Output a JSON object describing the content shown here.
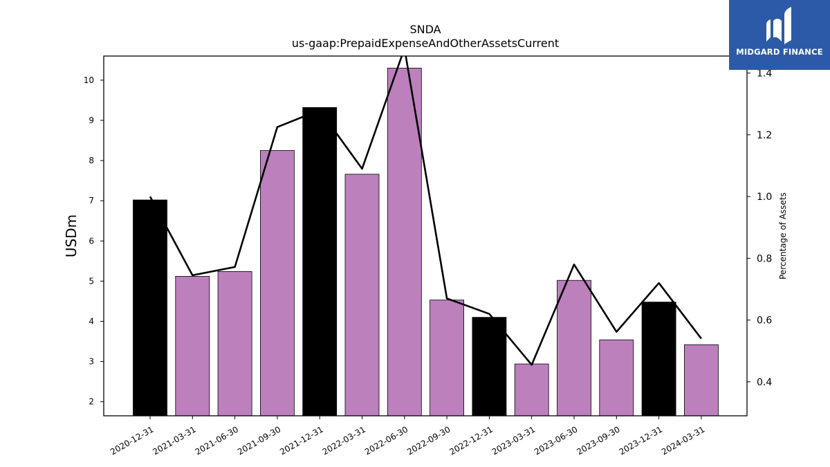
{
  "logo": {
    "text": "MIDGARD FINANCE",
    "bg_color": "#2d5aa8"
  },
  "chart_data": {
    "type": "bar",
    "title": "SNDA",
    "subtitle": "us-gaap:PrepaidExpenseAndOtherAssetsCurrent",
    "ylabel": "USDm",
    "y2label": "Percentage of Assets",
    "ylim": [
      1.65,
      10.6
    ],
    "y2lim": [
      0.29,
      1.455
    ],
    "yticks": [
      2,
      3,
      4,
      5,
      6,
      7,
      8,
      9,
      10
    ],
    "y2ticks": [
      0.4,
      0.6,
      0.8,
      1.0,
      1.2,
      1.4
    ],
    "y2tick_labels": [
      "0.4",
      "0.6",
      "0.8",
      "1.0",
      "1.2",
      "1.4"
    ],
    "grid": false,
    "categories": [
      "2020-12-31",
      "2021-03-31",
      "2021-06-30",
      "2021-09-30",
      "2021-12-31",
      "2022-03-31",
      "2022-06-30",
      "2022-09-30",
      "2022-12-31",
      "2023-03-31",
      "2023-06-30",
      "2023-09-30",
      "2023-12-31",
      "2024-03-31"
    ],
    "series": [
      {
        "type": "bar",
        "axis": "left",
        "values": [
          7.02,
          5.12,
          5.24,
          8.25,
          9.32,
          7.66,
          10.3,
          4.53,
          4.1,
          2.94,
          5.02,
          3.54,
          4.48,
          3.42
        ],
        "colors": [
          "#000000",
          "#bc80bd",
          "#bc80bd",
          "#bc80bd",
          "#000000",
          "#bc80bd",
          "#bc80bd",
          "#bc80bd",
          "#000000",
          "#bc80bd",
          "#bc80bd",
          "#bc80bd",
          "#000000",
          "#bc80bd"
        ]
      },
      {
        "type": "line",
        "axis": "right",
        "color": "#000000",
        "values": [
          1.0,
          0.745,
          0.772,
          1.225,
          1.28,
          1.09,
          1.48,
          0.67,
          0.62,
          0.455,
          0.78,
          0.562,
          0.72,
          0.54
        ]
      }
    ]
  }
}
